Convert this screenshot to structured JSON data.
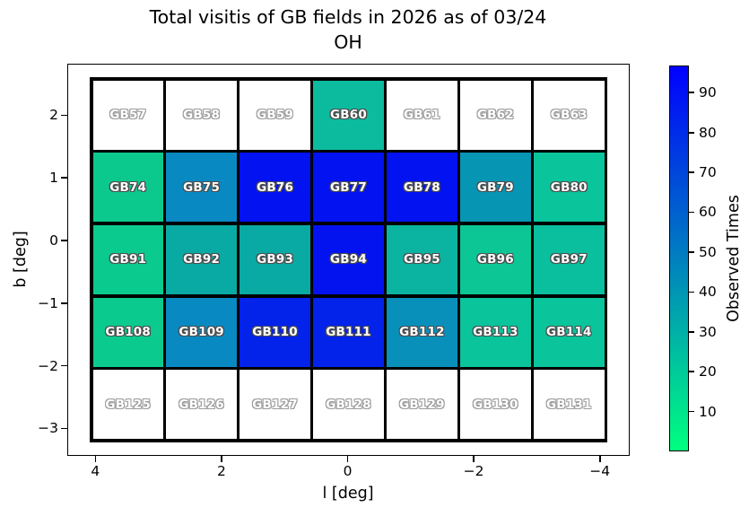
{
  "chart_data": {
    "type": "heatmap",
    "title_lines": [
      "Total visitis of GB fields in 2026 as of 03/24",
      "OH"
    ],
    "xlabel": "l [deg]",
    "ylabel": "b [deg]",
    "x_axis_reversed": true,
    "grid_on": false,
    "x_ticks": [
      {
        "label": "4",
        "value": 4
      },
      {
        "label": "2",
        "value": 2
      },
      {
        "label": "0",
        "value": 0
      },
      {
        "label": "−2",
        "value": -2
      },
      {
        "label": "−4",
        "value": -4
      }
    ],
    "y_ticks": [
      {
        "label": "2",
        "value": 2
      },
      {
        "label": "1",
        "value": 1
      },
      {
        "label": "0",
        "value": 0
      },
      {
        "label": "−1",
        "value": -1
      },
      {
        "label": "−2",
        "value": -2
      },
      {
        "label": "−3",
        "value": -3
      }
    ],
    "colorbar": {
      "label": "Observed Times",
      "position": "right",
      "vmin": 0,
      "vmax": 96.8,
      "colormap": "winter_r",
      "bottom_color": "#00ff80",
      "top_color": "#0000ff",
      "ticks": [
        {
          "label": "10",
          "value": 10
        },
        {
          "label": "20",
          "value": 20
        },
        {
          "label": "30",
          "value": 30
        },
        {
          "label": "40",
          "value": 40
        },
        {
          "label": "50",
          "value": 50
        },
        {
          "label": "60",
          "value": 60
        },
        {
          "label": "70",
          "value": 70
        },
        {
          "label": "80",
          "value": 80
        },
        {
          "label": "90",
          "value": 90
        }
      ]
    },
    "rows": [
      {
        "cells": [
          {
            "label": "GB57",
            "value": 0,
            "color": "#ffffff",
            "empty": true
          },
          {
            "label": "GB58",
            "value": 0,
            "color": "#ffffff",
            "empty": true
          },
          {
            "label": "GB59",
            "value": 0,
            "color": "#ffffff",
            "empty": true
          },
          {
            "label": "GB60",
            "value": 26,
            "color": "#0cbb9e",
            "empty": false
          },
          {
            "label": "GB61",
            "value": 0,
            "color": "#ffffff",
            "empty": true
          },
          {
            "label": "GB62",
            "value": 0,
            "color": "#ffffff",
            "empty": true
          },
          {
            "label": "GB63",
            "value": 0,
            "color": "#ffffff",
            "empty": true
          }
        ]
      },
      {
        "cells": [
          {
            "label": "GB74",
            "value": 20,
            "color": "#0bc98d",
            "empty": false
          },
          {
            "label": "GB75",
            "value": 46,
            "color": "#0989c2",
            "empty": false
          },
          {
            "label": "GB76",
            "value": 93,
            "color": "#0312f0",
            "empty": false
          },
          {
            "label": "GB77",
            "value": 93,
            "color": "#0312f0",
            "empty": false
          },
          {
            "label": "GB78",
            "value": 93,
            "color": "#0312f0",
            "empty": false
          },
          {
            "label": "GB79",
            "value": 42,
            "color": "#0795b4",
            "empty": false
          },
          {
            "label": "GB80",
            "value": 22,
            "color": "#0ac49c",
            "empty": false
          }
        ]
      },
      {
        "cells": [
          {
            "label": "GB91",
            "value": 20,
            "color": "#0bca8e",
            "empty": false
          },
          {
            "label": "GB92",
            "value": 32,
            "color": "#09aaa3",
            "empty": false
          },
          {
            "label": "GB93",
            "value": 32,
            "color": "#09aaa3",
            "empty": false
          },
          {
            "label": "GB94",
            "value": 93,
            "color": "#0313f0",
            "empty": false
          },
          {
            "label": "GB95",
            "value": 30,
            "color": "#0ab4a0",
            "empty": false
          },
          {
            "label": "GB96",
            "value": 21,
            "color": "#0cc795",
            "empty": false
          },
          {
            "label": "GB97",
            "value": 24,
            "color": "#0abf9d",
            "empty": false
          }
        ]
      },
      {
        "cells": [
          {
            "label": "GB108",
            "value": 20,
            "color": "#0bca8e",
            "empty": false
          },
          {
            "label": "GB109",
            "value": 46,
            "color": "#0989c2",
            "empty": false
          },
          {
            "label": "GB110",
            "value": 85,
            "color": "#0322ea",
            "empty": false
          },
          {
            "label": "GB111",
            "value": 85,
            "color": "#0322ea",
            "empty": false
          },
          {
            "label": "GB112",
            "value": 44,
            "color": "#0890bb",
            "empty": false
          },
          {
            "label": "GB113",
            "value": 22,
            "color": "#0ac49c",
            "empty": false
          },
          {
            "label": "GB114",
            "value": 22,
            "color": "#0ac49c",
            "empty": false
          }
        ]
      },
      {
        "cells": [
          {
            "label": "GB125",
            "value": 0,
            "color": "#ffffff",
            "empty": true
          },
          {
            "label": "GB126",
            "value": 0,
            "color": "#ffffff",
            "empty": true
          },
          {
            "label": "GB127",
            "value": 0,
            "color": "#ffffff",
            "empty": true
          },
          {
            "label": "GB128",
            "value": 0,
            "color": "#ffffff",
            "empty": true
          },
          {
            "label": "GB129",
            "value": 0,
            "color": "#ffffff",
            "empty": true
          },
          {
            "label": "GB130",
            "value": 0,
            "color": "#ffffff",
            "empty": true
          },
          {
            "label": "GB131",
            "value": 0,
            "color": "#ffffff",
            "empty": true
          }
        ]
      }
    ]
  }
}
